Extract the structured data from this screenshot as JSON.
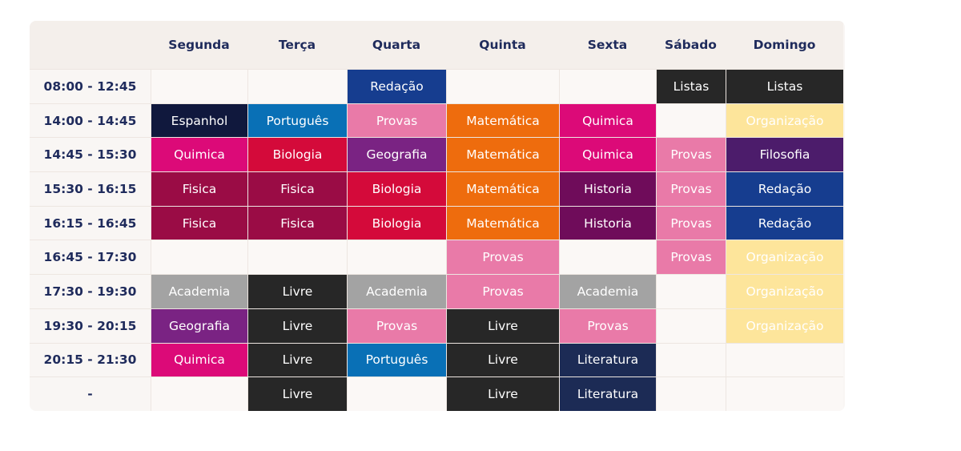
{
  "schedule": {
    "days": [
      "Segunda",
      "Terça",
      "Quarta",
      "Quinta",
      "Sexta",
      "Sábado",
      "Domingo"
    ],
    "rows": [
      {
        "time": "08:00 - 12:45",
        "cells": [
          "",
          "",
          "Redação",
          "",
          "",
          "Listas",
          "Listas"
        ]
      },
      {
        "time": "14:00 - 14:45",
        "cells": [
          "Espanhol",
          "Português",
          "Provas",
          "Matemática",
          "Quimica",
          "",
          "Organização"
        ]
      },
      {
        "time": "14:45 - 15:30",
        "cells": [
          "Quimica",
          "Biologia",
          "Geografia",
          "Matemática",
          "Quimica",
          "Provas",
          "Filosofia"
        ]
      },
      {
        "time": "15:30 - 16:15",
        "cells": [
          "Fisica",
          "Fisica",
          "Biologia",
          "Matemática",
          "Historia",
          "Provas",
          "Redação"
        ]
      },
      {
        "time": "16:15 - 16:45",
        "cells": [
          "Fisica",
          "Fisica",
          "Biologia",
          "Matemática",
          "Historia",
          "Provas",
          "Redação"
        ]
      },
      {
        "time": "16:45 - 17:30",
        "cells": [
          "",
          "",
          "",
          "Provas",
          "",
          "Provas",
          "Organização"
        ]
      },
      {
        "time": "17:30 - 19:30",
        "cells": [
          "Academia",
          "Livre",
          "Academia",
          "Provas",
          "Academia",
          "",
          "Organização"
        ]
      },
      {
        "time": "19:30 - 20:15",
        "cells": [
          "Geografia",
          "Livre",
          "Provas",
          "Livre",
          "Provas",
          "",
          "Organização"
        ]
      },
      {
        "time": "20:15 - 21:30",
        "cells": [
          "Quimica",
          "Livre",
          "Português",
          "Livre",
          "Literatura",
          "",
          ""
        ]
      },
      {
        "time": "-",
        "cells": [
          "",
          "Livre",
          "",
          "Livre",
          "Literatura",
          "",
          ""
        ]
      }
    ]
  },
  "subject_colors": {
    "Redação": "#163d8f",
    "Listas": "#272727",
    "Espanhol": "#10183d",
    "Português": "#0970b6",
    "Provas": "#e97aa8",
    "Matemática": "#ee6c0d",
    "Quimica": "#dc0a78",
    "Organização": "#fde59b",
    "Biologia": "#d40a3a",
    "Geografia": "#7a2383",
    "Filosofia": "#4c1c6b",
    "Fisica": "#9a0c45",
    "Historia": "#6f0c5a",
    "Academia": "#a3a3a3",
    "Livre": "#272727",
    "Literatura": "#1c2b55"
  },
  "background_colors": {
    "header": "#f4efeb",
    "empty": "#fbf8f6"
  }
}
